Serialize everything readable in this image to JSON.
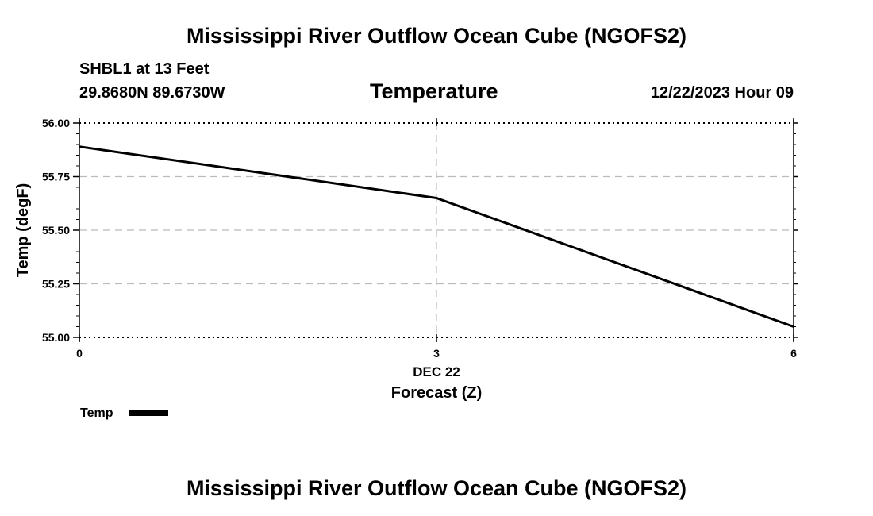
{
  "header": {
    "title": "Mississippi River Outflow Ocean Cube (NGOFS2)",
    "station": "SHBL1 at 13 Feet",
    "coordinates": "29.8680N  89.6730W",
    "panel_title": "Temperature",
    "datetime": "12/22/2023 Hour 09"
  },
  "footer": {
    "title": "Mississippi River Outflow Ocean Cube (NGOFS2)"
  },
  "chart_data": {
    "type": "line",
    "title": "Temperature",
    "xlabel": "Forecast (Z)",
    "ylabel": "Temp (degF)",
    "x_ticks": [
      0,
      3,
      6
    ],
    "x_tick_labels": [
      "0",
      "3",
      "6"
    ],
    "x_date_label": "DEC 22",
    "xlim": [
      0,
      6
    ],
    "y_ticks": [
      55.0,
      55.25,
      55.5,
      55.75,
      56.0
    ],
    "y_tick_labels": [
      "55.00",
      "55.25",
      "55.50",
      "55.75",
      "56.00"
    ],
    "ylim": [
      55.0,
      56.0
    ],
    "grid": true,
    "legend_position": "bottom-left",
    "series": [
      {
        "name": "Temp",
        "color": "#000000",
        "x": [
          0,
          3,
          6
        ],
        "values": [
          55.89,
          55.65,
          55.05
        ]
      }
    ]
  }
}
